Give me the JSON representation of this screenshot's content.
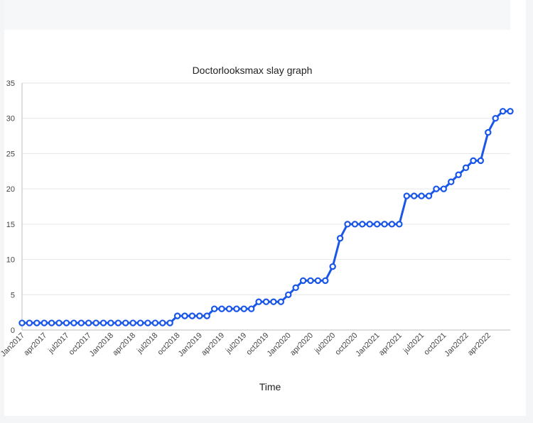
{
  "chart_data": {
    "type": "line",
    "title": "Doctorlooksmax slay graph",
    "xlabel": "Time",
    "ylabel": "",
    "ylim": [
      0,
      35
    ],
    "yticks": [
      0,
      5,
      10,
      15,
      20,
      25,
      30,
      35
    ],
    "grid": true,
    "legend": "none",
    "x_tick_labels": [
      "Jan2017",
      "apr2017",
      "jul2017",
      "oct2017",
      "Jan2018",
      "apr2018",
      "jul2018",
      "oct2018",
      "Jan2019",
      "apr2019",
      "jul2019",
      "oct2019",
      "Jan2020",
      "apr2020",
      "jul2020",
      "oct2020",
      "Jan2021",
      "apr2021",
      "jul2021",
      "oct2021",
      "Jan2022",
      "apr2022"
    ],
    "series": [
      {
        "color": "#1a56e8",
        "values": [
          1,
          1,
          1,
          1,
          1,
          1,
          1,
          1,
          1,
          1,
          1,
          1,
          1,
          1,
          1,
          1,
          1,
          1,
          1,
          1,
          1,
          2,
          2,
          2,
          2,
          2,
          3,
          3,
          3,
          3,
          3,
          3,
          4,
          4,
          4,
          4,
          5,
          6,
          7,
          7,
          7,
          7,
          9,
          13,
          15,
          15,
          15,
          15,
          15,
          15,
          15,
          15,
          19,
          19,
          19,
          19,
          20,
          20,
          21,
          22,
          23,
          24,
          24,
          28,
          30,
          31,
          31
        ]
      }
    ]
  }
}
